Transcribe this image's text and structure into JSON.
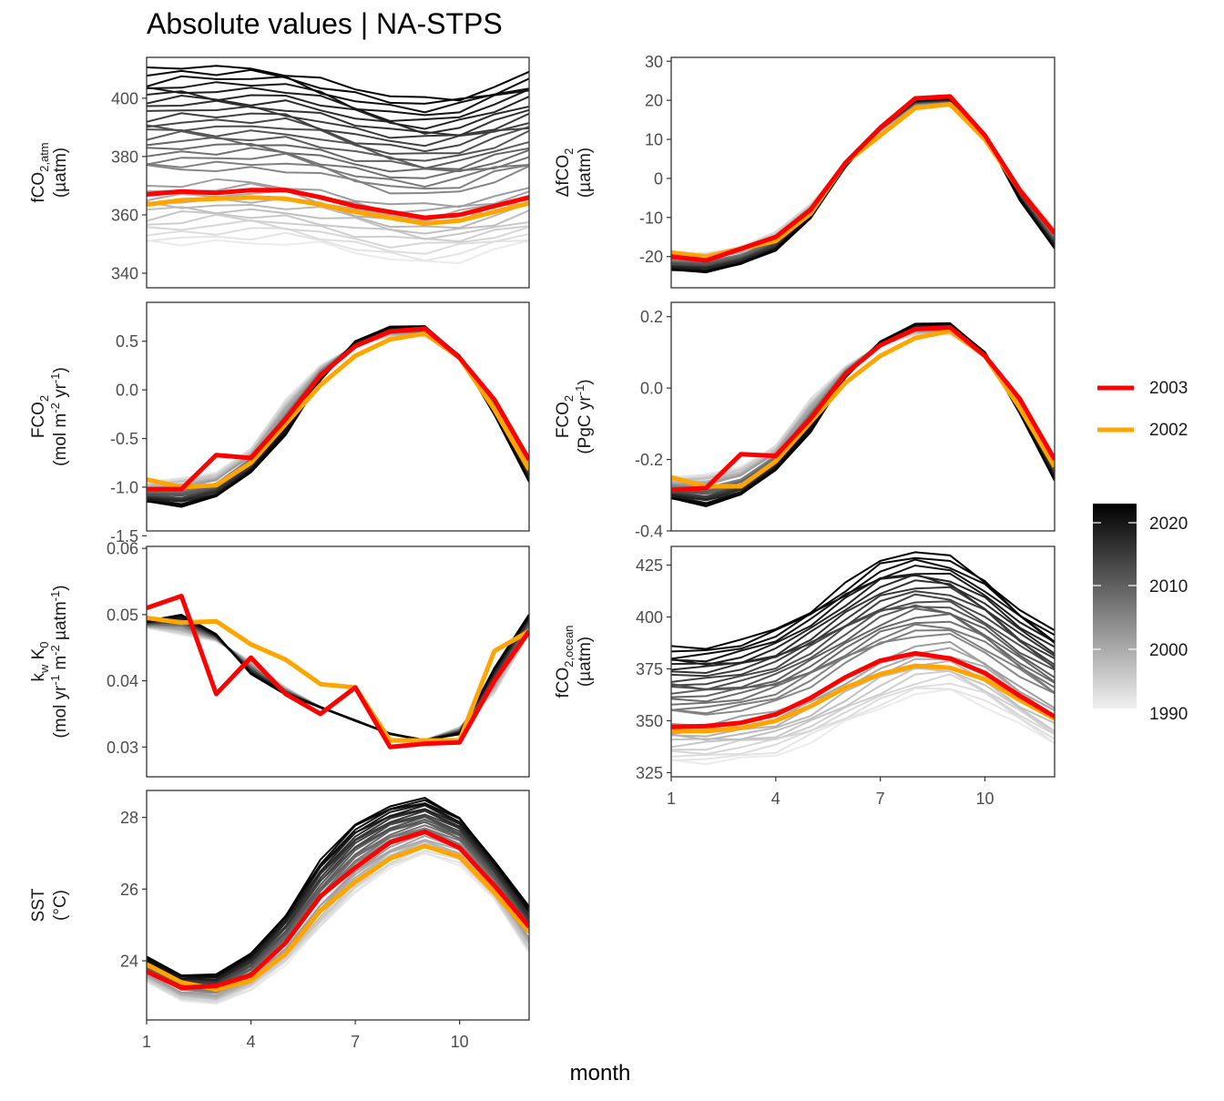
{
  "title": "Absolute values | NA-STPS",
  "x_axis_title": "month",
  "legend": {
    "lines": [
      {
        "label": "2003",
        "color": "#ff0000"
      },
      {
        "label": "2002",
        "color": "#ffa500"
      }
    ],
    "colorbar": {
      "ticks": [
        "2020",
        "2010",
        "2000",
        "1990"
      ],
      "range": [
        1990,
        2023
      ],
      "low_color": "#f0f0f0",
      "high_color": "#000000"
    }
  },
  "chart_data": [
    {
      "type": "line",
      "id": "fco2atm",
      "ylabel_lines": [
        {
          "parts": [
            {
              "t": "fCO"
            },
            {
              "t": "2,atm",
              "sub": true
            }
          ]
        },
        {
          "parts": [
            {
              "t": "(µatm)"
            }
          ]
        }
      ],
      "xlim": [
        1,
        12
      ],
      "ylim": [
        335,
        414
      ],
      "yticks": [
        340,
        360,
        380,
        400
      ],
      "ytick_labels": [
        "340",
        "360",
        "380",
        "400"
      ],
      "x": [
        1,
        2,
        3,
        4,
        5,
        6,
        7,
        8,
        9,
        10,
        11,
        12
      ],
      "years": [
        1990,
        2023
      ],
      "base_first": [
        350,
        350.5,
        351,
        351,
        350.5,
        349,
        347,
        345,
        344,
        345,
        347.5,
        350
      ],
      "base_last": [
        409.5,
        410.5,
        410,
        410,
        409.5,
        406.5,
        403,
        400.5,
        399,
        400.5,
        404.5,
        408.5
      ],
      "highlight": [
        {
          "name": "2003",
          "color": "#ff0000",
          "values": [
            367,
            368,
            367.5,
            368.5,
            368.5,
            366,
            363,
            361,
            359,
            360,
            363,
            366
          ]
        },
        {
          "name": "2002",
          "color": "#ffa500",
          "values": [
            363.5,
            365,
            365.5,
            366,
            365.5,
            363.5,
            361,
            359,
            357,
            358,
            361,
            364
          ]
        }
      ]
    },
    {
      "type": "line",
      "id": "dfco2",
      "ylabel_lines": [
        {
          "parts": [
            {
              "t": "ΔfCO"
            },
            {
              "t": "2",
              "sub": true
            }
          ]
        },
        {
          "parts": [
            {
              "t": "(µatm)"
            }
          ]
        }
      ],
      "xlim": [
        1,
        12
      ],
      "ylim": [
        -28,
        31
      ],
      "yticks": [
        -20,
        -10,
        0,
        10,
        20,
        30
      ],
      "ytick_labels": [
        "-20",
        "-10",
        "0",
        "10",
        "20",
        "30"
      ],
      "x": [
        1,
        2,
        3,
        4,
        5,
        6,
        7,
        8,
        9,
        10,
        11,
        12
      ],
      "years": [
        1990,
        2023
      ],
      "base_first": [
        -19,
        -19,
        -17.5,
        -13.5,
        -6.5,
        3.5,
        12,
        18.5,
        19,
        11,
        -2,
        -13
      ],
      "base_last": [
        -23.5,
        -24,
        -22,
        -18.5,
        -10,
        3,
        13,
        20,
        20.5,
        11,
        -5.5,
        -18
      ],
      "highlight": [
        {
          "name": "2003",
          "color": "#ff0000",
          "values": [
            -20,
            -21,
            -18,
            -15,
            -8,
            4,
            13,
            20.5,
            21,
            11,
            -3,
            -14
          ]
        },
        {
          "name": "2002",
          "color": "#ffa500",
          "values": [
            -19,
            -20,
            -18,
            -16,
            -9,
            4,
            11,
            18,
            19,
            10,
            -3,
            -14
          ]
        }
      ]
    },
    {
      "type": "line",
      "id": "fco2flux_mol",
      "ylabel_lines": [
        {
          "parts": [
            {
              "t": "FCO"
            },
            {
              "t": "2",
              "sub": true
            }
          ]
        },
        {
          "parts": [
            {
              "t": "(mol m"
            },
            {
              "t": "-2",
              "sup": true
            },
            {
              "t": " yr"
            },
            {
              "t": "-1",
              "sup": true
            },
            {
              "t": ")"
            }
          ]
        }
      ],
      "xlim": [
        1,
        12
      ],
      "ylim": [
        -1.45,
        0.9
      ],
      "yticks": [
        -1.5,
        -1.0,
        -0.5,
        0.0,
        0.5
      ],
      "ytick_labels": [
        "-1.5",
        "-1.0",
        "-0.5",
        "0.0",
        "0.5"
      ],
      "x": [
        1,
        2,
        3,
        4,
        5,
        6,
        7,
        8,
        9,
        10,
        11,
        12
      ],
      "years": [
        1990,
        2023
      ],
      "base_first": [
        -0.95,
        -0.9,
        -0.85,
        -0.6,
        -0.1,
        0.25,
        0.45,
        0.55,
        0.55,
        0.35,
        -0.1,
        -0.7
      ],
      "base_last": [
        -1.15,
        -1.2,
        -1.1,
        -0.85,
        -0.45,
        0.1,
        0.5,
        0.65,
        0.65,
        0.35,
        -0.25,
        -0.95
      ],
      "highlight": [
        {
          "name": "2003",
          "color": "#ff0000",
          "values": [
            -1.02,
            -1.02,
            -0.67,
            -0.7,
            -0.3,
            0.15,
            0.45,
            0.6,
            0.63,
            0.33,
            -0.1,
            -0.72
          ]
        },
        {
          "name": "2002",
          "color": "#ffa500",
          "values": [
            -0.92,
            -1.0,
            -0.98,
            -0.75,
            -0.35,
            0.05,
            0.35,
            0.52,
            0.58,
            0.33,
            -0.2,
            -0.82
          ]
        }
      ]
    },
    {
      "type": "line",
      "id": "fco2flux_pgc",
      "ylabel_lines": [
        {
          "parts": [
            {
              "t": "FCO"
            },
            {
              "t": "2",
              "sub": true
            }
          ]
        },
        {
          "parts": [
            {
              "t": "(PgC yr"
            },
            {
              "t": "-1",
              "sup": true
            },
            {
              "t": ")"
            }
          ]
        }
      ],
      "xlim": [
        1,
        12
      ],
      "ylim": [
        -0.4,
        0.24
      ],
      "yticks": [
        -0.4,
        -0.2,
        0.0,
        0.2
      ],
      "ytick_labels": [
        "-0.4",
        "-0.2",
        "0.0",
        "0.2"
      ],
      "x": [
        1,
        2,
        3,
        4,
        5,
        6,
        7,
        8,
        9,
        10,
        11,
        12
      ],
      "years": [
        1990,
        2023
      ],
      "base_first": [
        -0.25,
        -0.24,
        -0.22,
        -0.16,
        -0.03,
        0.06,
        0.12,
        0.15,
        0.15,
        0.09,
        -0.03,
        -0.19
      ],
      "base_last": [
        -0.31,
        -0.33,
        -0.3,
        -0.23,
        -0.12,
        0.03,
        0.13,
        0.18,
        0.18,
        0.1,
        -0.07,
        -0.26
      ],
      "highlight": [
        {
          "name": "2003",
          "color": "#ff0000",
          "values": [
            -0.285,
            -0.28,
            -0.185,
            -0.19,
            -0.085,
            0.04,
            0.12,
            0.165,
            0.17,
            0.09,
            -0.03,
            -0.2
          ]
        },
        {
          "name": "2002",
          "color": "#ffa500",
          "values": [
            -0.25,
            -0.275,
            -0.275,
            -0.205,
            -0.095,
            0.015,
            0.09,
            0.14,
            0.16,
            0.09,
            -0.055,
            -0.22
          ]
        }
      ]
    },
    {
      "type": "line",
      "id": "kwk0",
      "ylabel_lines": [
        {
          "parts": [
            {
              "t": "k"
            },
            {
              "t": "w",
              "sub": true
            },
            {
              "t": " K"
            },
            {
              "t": "0",
              "sub": true
            }
          ]
        },
        {
          "parts": [
            {
              "t": "(mol yr"
            },
            {
              "t": "-1",
              "sup": true
            },
            {
              "t": " m"
            },
            {
              "t": "-2",
              "sup": true
            },
            {
              "t": " µatm"
            },
            {
              "t": "-1",
              "sup": true
            },
            {
              "t": ")"
            }
          ]
        }
      ],
      "xlim": [
        1,
        12
      ],
      "ylim": [
        0.0255,
        0.0603
      ],
      "yticks": [
        0.03,
        0.04,
        0.05,
        0.06
      ],
      "ytick_labels": [
        "0.03",
        "0.04",
        "0.05",
        "0.06"
      ],
      "x": [
        1,
        2,
        3,
        4,
        5,
        6,
        7,
        8,
        9,
        10,
        11,
        12
      ],
      "years": [
        1990,
        2023
      ],
      "base_first": [
        0.048,
        0.047,
        0.046,
        0.043,
        0.039,
        0.036,
        0.034,
        0.032,
        0.031,
        0.033,
        0.038,
        0.047
      ],
      "base_last": [
        0.049,
        0.05,
        0.047,
        0.041,
        0.038,
        0.036,
        0.034,
        0.032,
        0.031,
        0.032,
        0.042,
        0.05
      ],
      "highlight": [
        {
          "name": "2003",
          "color": "#ff0000",
          "values": [
            0.051,
            0.0528,
            0.038,
            0.0435,
            0.038,
            0.035,
            0.039,
            0.03,
            0.0305,
            0.0307,
            0.04,
            0.0475
          ]
        },
        {
          "name": "2002",
          "color": "#ffa500",
          "values": [
            0.0495,
            0.0488,
            0.049,
            0.0455,
            0.0432,
            0.0395,
            0.039,
            0.031,
            0.031,
            0.031,
            0.0445,
            0.0475
          ]
        }
      ]
    },
    {
      "type": "line",
      "id": "fco2ocean",
      "ylabel_lines": [
        {
          "parts": [
            {
              "t": "fCO"
            },
            {
              "t": "2,ocean",
              "sub": true
            }
          ]
        },
        {
          "parts": [
            {
              "t": "(µatm)"
            }
          ]
        }
      ],
      "xlim": [
        1,
        12
      ],
      "ylim": [
        323,
        434
      ],
      "yticks": [
        325,
        350,
        375,
        400,
        425
      ],
      "ytick_labels": [
        "325",
        "350",
        "375",
        "400",
        "425"
      ],
      "x": [
        1,
        2,
        3,
        4,
        5,
        6,
        7,
        8,
        9,
        10,
        11,
        12
      ],
      "years": [
        1990,
        2023
      ],
      "base_first": [
        330,
        330,
        332,
        334,
        340,
        348,
        356,
        363,
        365,
        358,
        348,
        338
      ],
      "base_last": [
        385,
        385,
        388,
        394,
        404,
        416,
        427,
        431,
        428,
        418,
        404,
        393
      ],
      "highlight": [
        {
          "name": "2003",
          "color": "#ff0000",
          "values": [
            347,
            347.5,
            349,
            353,
            361,
            371,
            379,
            382.5,
            380,
            373,
            362,
            352
          ]
        },
        {
          "name": "2002",
          "color": "#ffa500",
          "values": [
            345,
            345,
            346.5,
            350,
            357,
            366,
            372.5,
            376.5,
            375.5,
            370,
            360,
            351
          ]
        }
      ]
    },
    {
      "type": "line",
      "id": "sst",
      "ylabel_lines": [
        {
          "parts": [
            {
              "t": "SST"
            }
          ]
        },
        {
          "parts": [
            {
              "t": "(°C)"
            }
          ]
        }
      ],
      "xlim": [
        1,
        12
      ],
      "ylim": [
        22.35,
        28.75
      ],
      "yticks": [
        24,
        26,
        28
      ],
      "ytick_labels": [
        "24",
        "26",
        "28"
      ],
      "x": [
        1,
        2,
        3,
        4,
        5,
        6,
        7,
        8,
        9,
        10,
        11,
        12
      ],
      "years": [
        1990,
        2023
      ],
      "base_first": [
        23.4,
        22.9,
        22.8,
        23.2,
        23.9,
        24.9,
        25.9,
        26.6,
        27.0,
        26.7,
        25.7,
        24.2
      ],
      "base_last": [
        24.1,
        23.6,
        23.6,
        24.2,
        25.3,
        26.8,
        27.8,
        28.3,
        28.5,
        28.0,
        26.8,
        25.5
      ],
      "highlight": [
        {
          "name": "2003",
          "color": "#ff0000",
          "values": [
            23.7,
            23.25,
            23.3,
            23.6,
            24.5,
            25.8,
            26.6,
            27.3,
            27.6,
            27.15,
            26.1,
            24.95
          ]
        },
        {
          "name": "2002",
          "color": "#ffa500",
          "values": [
            23.9,
            23.4,
            23.2,
            23.45,
            24.2,
            25.4,
            26.2,
            26.85,
            27.2,
            26.9,
            25.9,
            24.8
          ]
        }
      ]
    }
  ],
  "x_axis": {
    "ticks": [
      1,
      4,
      7,
      10
    ],
    "tick_labels": [
      "1",
      "4",
      "7",
      "10"
    ]
  }
}
